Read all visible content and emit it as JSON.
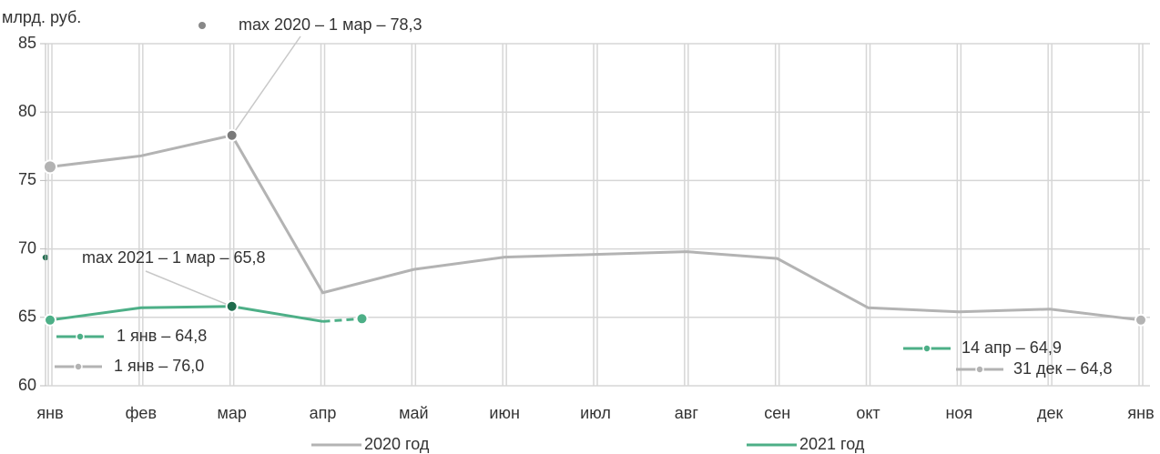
{
  "chart_data": {
    "type": "line",
    "y_axis_label": "млрд. руб.",
    "categories": [
      "янв",
      "фев",
      "мар",
      "апр",
      "май",
      "июн",
      "июл",
      "авг",
      "сен",
      "окт",
      "ноя",
      "дек",
      "янв"
    ],
    "ylim": [
      60,
      85
    ],
    "yticks": [
      60,
      65,
      70,
      75,
      80,
      85
    ],
    "grid": true,
    "series": [
      {
        "name": "2020 год",
        "color": "#b3b3b3",
        "values": [
          76.0,
          76.8,
          78.3,
          66.8,
          68.5,
          69.4,
          69.6,
          69.8,
          69.3,
          65.7,
          65.4,
          65.6,
          64.8
        ]
      },
      {
        "name": "2021 год",
        "color": "#4daf87",
        "values": [
          64.8,
          65.7,
          65.8,
          64.7,
          null,
          null,
          null,
          null,
          null,
          null,
          null,
          null,
          null
        ],
        "latest": 64.9
      }
    ],
    "annotations": [
      "max 2020 – 1 мар – 78,3",
      "max 2021 – 1 мар – 65,8",
      "1 янв – 64,8",
      "1 янв – 76,0",
      "14 апр – 64,9",
      "31 дек – 64,8"
    ]
  }
}
